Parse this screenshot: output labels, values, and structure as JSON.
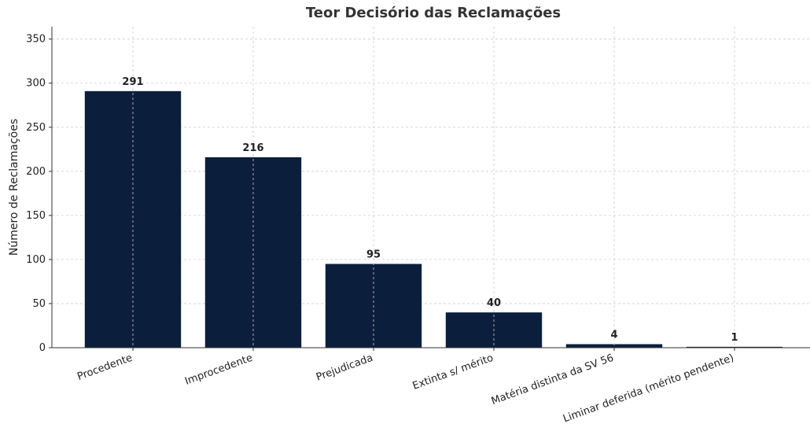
{
  "chart_data": {
    "type": "bar",
    "title": "Teor Decisório das Reclamações",
    "y_label": "Número de Reclamações",
    "categories": [
      "Procedente",
      "Improcedente",
      "Prejudicada",
      "Extinta s/ mérito",
      "Matéria distinta da SV 56",
      "Liminar deferida (mérito pendente)"
    ],
    "values": [
      291,
      216,
      95,
      40,
      4,
      1
    ],
    "color": "#0b1f3d",
    "ylim": [
      0,
      364
    ],
    "yticks": [
      0,
      50,
      100,
      150,
      200,
      250,
      300,
      350
    ],
    "grid": true
  }
}
